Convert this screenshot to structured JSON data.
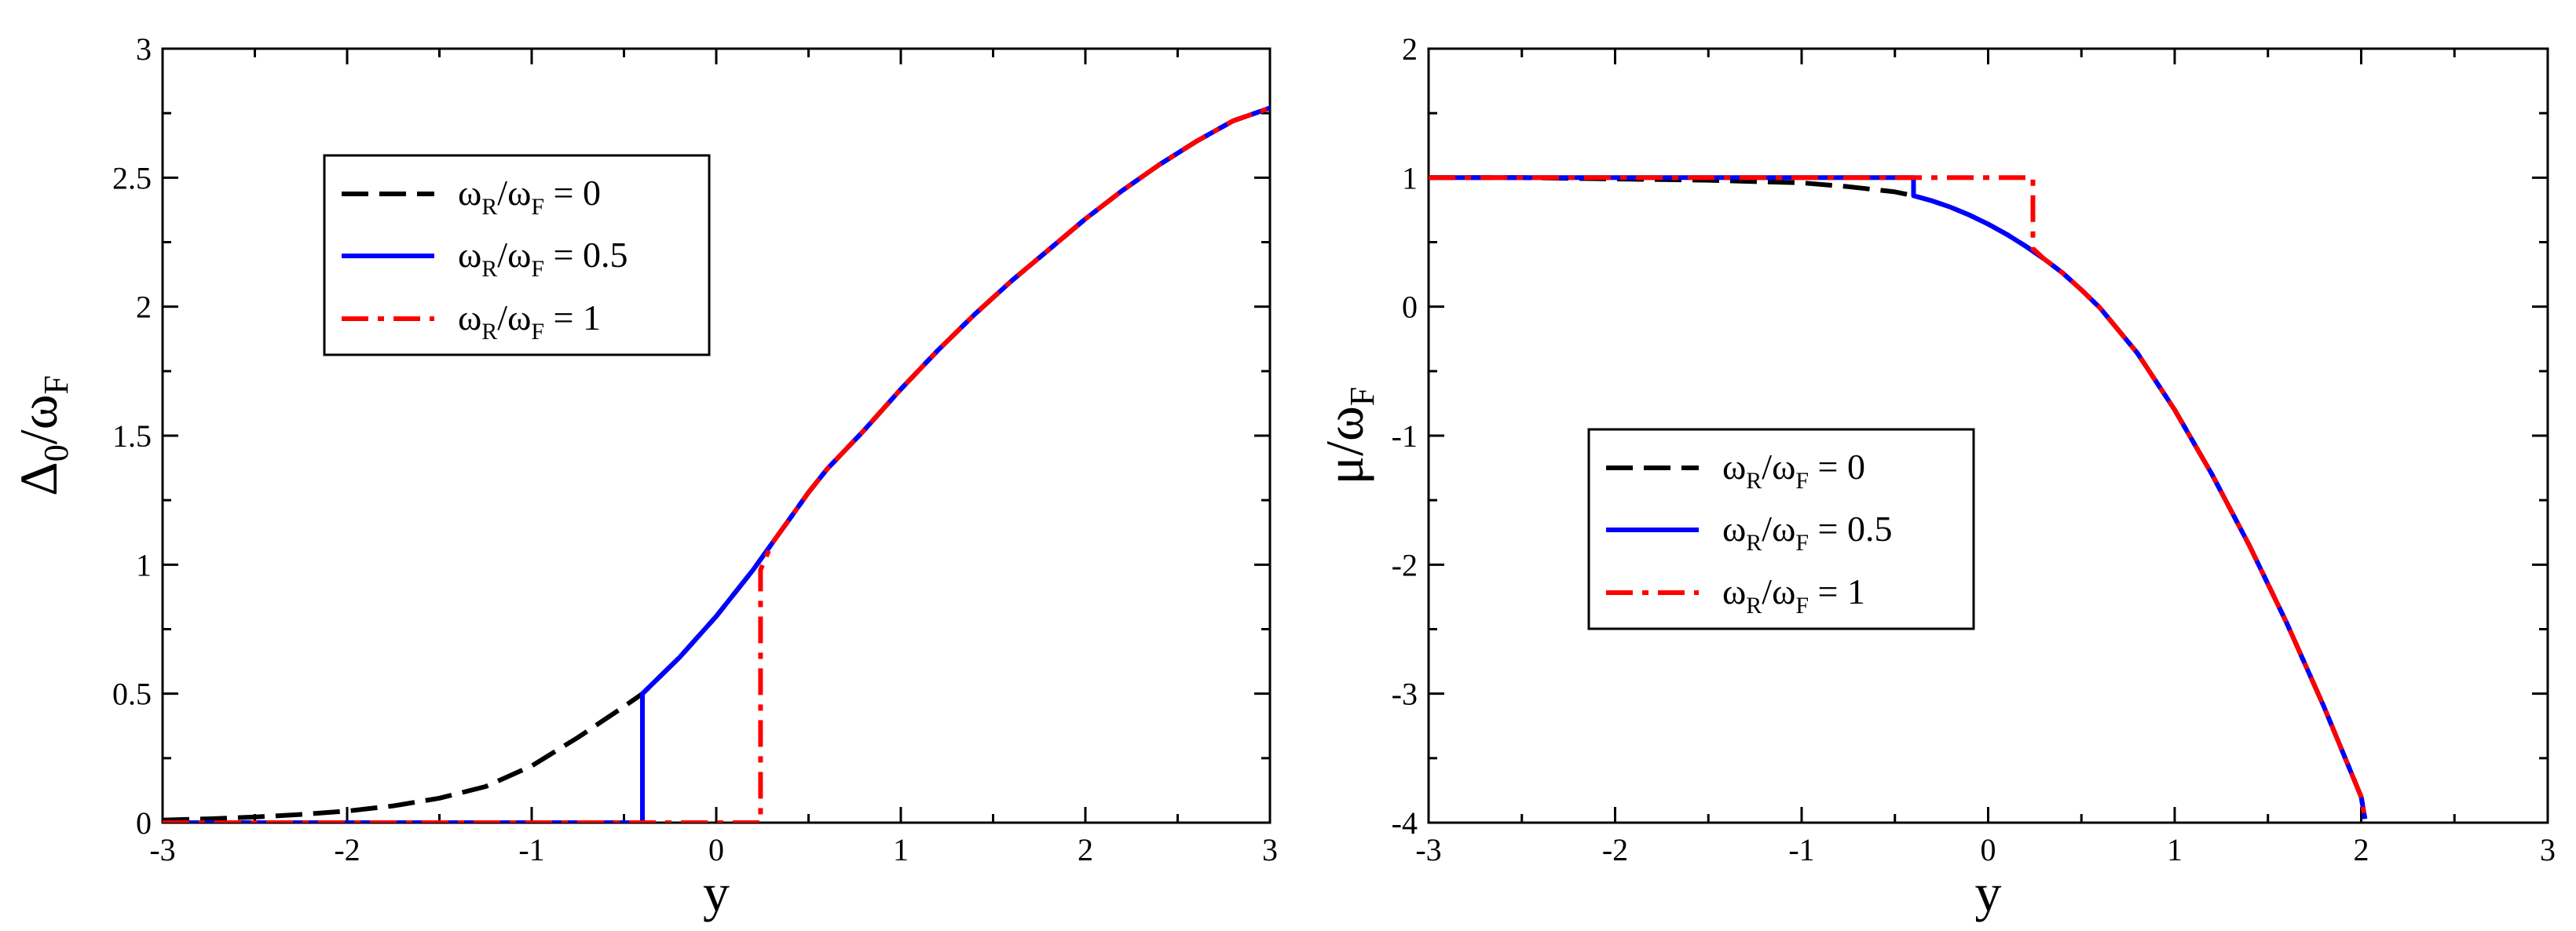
{
  "chart_data": [
    {
      "type": "line",
      "xlabel": "y",
      "ylabel": {
        "main": "Δ",
        "sub1": "0",
        "mid": "/ω",
        "sub2": "F"
      },
      "xlim": [
        -3,
        3
      ],
      "ylim": [
        0,
        3
      ],
      "xticks": [
        "-3",
        "-2",
        "-1",
        "0",
        "1",
        "2",
        "3"
      ],
      "yticks": [
        "0",
        "0.5",
        "1",
        "1.5",
        "2",
        "2.5",
        "3"
      ],
      "grid": false,
      "legend_position": "upper-left",
      "series": [
        {
          "name": "ω_R/ω_F = 0",
          "legend": {
            "a": "ω",
            "as": "R",
            "b": "/ω",
            "bs": "F",
            "c": " = 0"
          },
          "color": "#000000",
          "style": "dashed",
          "x": [
            -3.0,
            -2.75,
            -2.5,
            -2.25,
            -2.0,
            -1.75,
            -1.5,
            -1.25,
            -1.0,
            -0.75,
            -0.5,
            -0.4,
            -0.3,
            -0.2,
            -0.1,
            0.0,
            0.1,
            0.2,
            0.3,
            0.4,
            0.5,
            0.6,
            0.8,
            1.0,
            1.2,
            1.4,
            1.6,
            1.8,
            2.0,
            2.2,
            2.4,
            2.6,
            2.8,
            3.0
          ],
          "y": [
            0.01,
            0.015,
            0.022,
            0.032,
            0.045,
            0.065,
            0.095,
            0.14,
            0.22,
            0.33,
            0.45,
            0.5,
            0.57,
            0.64,
            0.72,
            0.8,
            0.89,
            0.98,
            1.08,
            1.18,
            1.28,
            1.37,
            1.52,
            1.68,
            1.83,
            1.97,
            2.1,
            2.22,
            2.34,
            2.45,
            2.55,
            2.64,
            2.72,
            2.77
          ]
        },
        {
          "name": "ω_R/ω_F = 0.5",
          "legend": {
            "a": "ω",
            "as": "R",
            "b": "/ω",
            "bs": "F",
            "c": " = 0.5"
          },
          "color": "#0000ff",
          "style": "solid",
          "x": [
            -3.0,
            -0.4,
            -0.4,
            -0.3,
            -0.2,
            -0.1,
            0.0,
            0.1,
            0.2,
            0.3,
            0.4,
            0.5,
            0.6,
            0.8,
            1.0,
            1.2,
            1.4,
            1.6,
            1.8,
            2.0,
            2.2,
            2.4,
            2.6,
            2.8,
            3.0
          ],
          "y": [
            0,
            0,
            0.5,
            0.57,
            0.64,
            0.72,
            0.8,
            0.89,
            0.98,
            1.08,
            1.18,
            1.28,
            1.37,
            1.52,
            1.68,
            1.83,
            1.97,
            2.1,
            2.22,
            2.34,
            2.45,
            2.55,
            2.64,
            2.72,
            2.77
          ]
        },
        {
          "name": "ω_R/ω_F = 1",
          "legend": {
            "a": "ω",
            "as": "R",
            "b": "/ω",
            "bs": "F",
            "c": " = 1"
          },
          "color": "#ff0000",
          "style": "dashdot",
          "x": [
            -3.0,
            0.24,
            0.24,
            0.3,
            0.4,
            0.5,
            0.6,
            0.8,
            1.0,
            1.2,
            1.4,
            1.6,
            1.8,
            2.0,
            2.2,
            2.4,
            2.6,
            2.8,
            3.0
          ],
          "y": [
            0,
            0,
            0.98,
            1.08,
            1.18,
            1.28,
            1.37,
            1.52,
            1.68,
            1.83,
            1.97,
            2.1,
            2.22,
            2.34,
            2.45,
            2.55,
            2.64,
            2.72,
            2.77
          ]
        }
      ]
    },
    {
      "type": "line",
      "xlabel": "y",
      "ylabel": {
        "main": "μ",
        "mid": "/ω",
        "sub2": "F"
      },
      "xlim": [
        -3,
        3
      ],
      "ylim": [
        -4,
        2
      ],
      "xticks": [
        "-3",
        "-2",
        "-1",
        "0",
        "1",
        "2",
        "3"
      ],
      "yticks": [
        "-4",
        "-3",
        "-2",
        "-1",
        "0",
        "1",
        "2"
      ],
      "grid": false,
      "legend_position": "center-left",
      "series": [
        {
          "name": "ω_R/ω_F = 0",
          "legend": {
            "a": "ω",
            "as": "R",
            "b": "/ω",
            "bs": "F",
            "c": " = 0"
          },
          "color": "#000000",
          "style": "dashed",
          "x": [
            -3.0,
            -2.5,
            -2.0,
            -1.5,
            -1.0,
            -0.75,
            -0.5,
            -0.4,
            -0.3,
            -0.2,
            -0.1,
            0.0,
            0.1,
            0.2,
            0.3,
            0.4,
            0.5,
            0.6,
            0.8,
            1.0,
            1.2,
            1.4,
            1.6,
            1.8,
            2.0,
            2.02
          ],
          "y": [
            1.0,
            1.0,
            0.99,
            0.98,
            0.96,
            0.93,
            0.89,
            0.86,
            0.82,
            0.77,
            0.71,
            0.64,
            0.56,
            0.47,
            0.37,
            0.26,
            0.13,
            -0.01,
            -0.36,
            -0.8,
            -1.3,
            -1.85,
            -2.45,
            -3.1,
            -3.8,
            -3.97
          ]
        },
        {
          "name": "ω_R/ω_F = 0.5",
          "legend": {
            "a": "ω",
            "as": "R",
            "b": "/ω",
            "bs": "F",
            "c": " = 0.5"
          },
          "color": "#0000ff",
          "style": "solid",
          "x": [
            -3.0,
            -0.4,
            -0.4,
            -0.3,
            -0.2,
            -0.1,
            0.0,
            0.1,
            0.2,
            0.3,
            0.4,
            0.5,
            0.6,
            0.8,
            1.0,
            1.2,
            1.4,
            1.6,
            1.8,
            2.0,
            2.02
          ],
          "y": [
            1.0,
            1.0,
            0.86,
            0.82,
            0.77,
            0.71,
            0.64,
            0.56,
            0.47,
            0.37,
            0.26,
            0.13,
            -0.01,
            -0.36,
            -0.8,
            -1.3,
            -1.85,
            -2.45,
            -3.1,
            -3.8,
            -3.97
          ]
        },
        {
          "name": "ω_R/ω_F = 1",
          "legend": {
            "a": "ω",
            "as": "R",
            "b": "/ω",
            "bs": "F",
            "c": " = 1"
          },
          "color": "#ff0000",
          "style": "dashdot",
          "x": [
            -3.0,
            0.24,
            0.24,
            0.3,
            0.4,
            0.5,
            0.6,
            0.8,
            1.0,
            1.2,
            1.4,
            1.6,
            1.8,
            2.0,
            2.02
          ],
          "y": [
            1.0,
            1.0,
            0.45,
            0.37,
            0.26,
            0.13,
            -0.01,
            -0.36,
            -0.8,
            -1.3,
            -1.85,
            -2.45,
            -3.1,
            -3.8,
            -3.97
          ]
        }
      ]
    }
  ]
}
